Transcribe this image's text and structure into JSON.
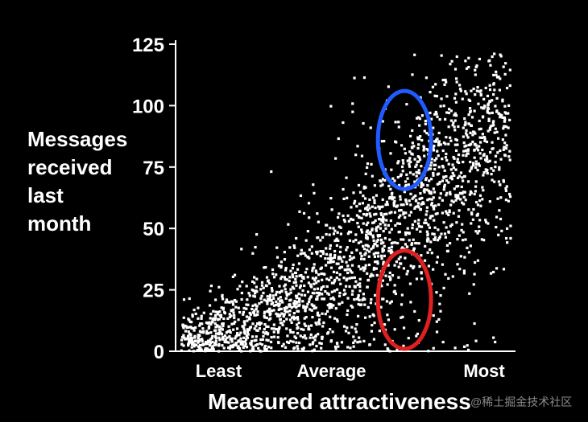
{
  "chart_data": {
    "type": "scatter",
    "ylabel_lines": [
      "Messages",
      "received",
      "last",
      "month"
    ],
    "xlabel": "Measured attractiveness",
    "y_ticks": [
      "0",
      "25",
      "50",
      "75",
      "100",
      "125"
    ],
    "x_tick_labels": [
      "Least",
      "Average",
      "Most"
    ],
    "ylim": [
      0,
      125
    ],
    "xlim": [
      0,
      1
    ],
    "point_color": "#ffffff",
    "density_description_points": [
      {
        "x": 0.05,
        "y": 5
      },
      {
        "x": 0.1,
        "y": 8
      },
      {
        "x": 0.15,
        "y": 10
      },
      {
        "x": 0.2,
        "y": 12
      },
      {
        "x": 0.25,
        "y": 15
      },
      {
        "x": 0.3,
        "y": 18
      },
      {
        "x": 0.35,
        "y": 20
      },
      {
        "x": 0.4,
        "y": 23
      },
      {
        "x": 0.45,
        "y": 28
      },
      {
        "x": 0.5,
        "y": 32
      },
      {
        "x": 0.55,
        "y": 38
      },
      {
        "x": 0.6,
        "y": 45
      },
      {
        "x": 0.65,
        "y": 52
      },
      {
        "x": 0.7,
        "y": 58
      },
      {
        "x": 0.75,
        "y": 65
      },
      {
        "x": 0.8,
        "y": 72
      },
      {
        "x": 0.85,
        "y": 78
      },
      {
        "x": 0.9,
        "y": 85
      },
      {
        "x": 0.95,
        "y": 92
      }
    ],
    "highlights": [
      {
        "color": "#1f5bff",
        "cx": 0.68,
        "cy": 86,
        "rx": 0.08,
        "ry": 20
      },
      {
        "color": "#e02020",
        "cx": 0.68,
        "cy": 21,
        "rx": 0.08,
        "ry": 20
      }
    ]
  },
  "watermark": "@稀土掘金技术社区"
}
